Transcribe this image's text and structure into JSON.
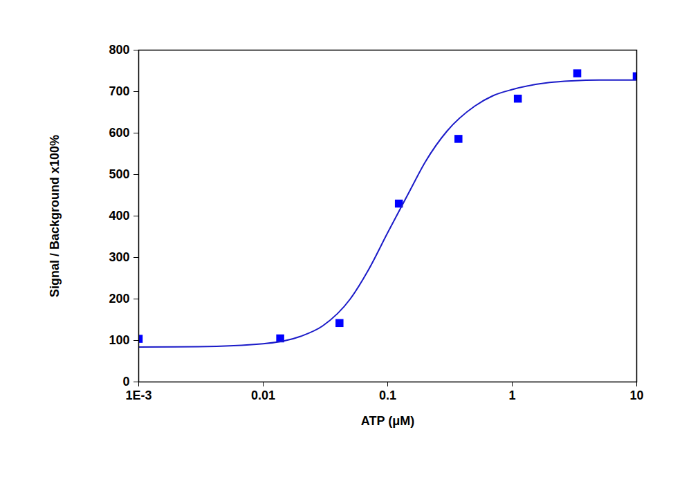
{
  "chart_data": {
    "type": "scatter",
    "x_label": "ATP (μM)",
    "y_label": "Signal / Background x100%",
    "log": "x",
    "xlim": [
      0.001,
      10
    ],
    "xticks": [
      {
        "value": 0.001,
        "label": "1E-3"
      },
      0.01,
      0.1,
      1,
      10
    ],
    "ylim": [
      0,
      800
    ],
    "yticks": [
      0,
      100,
      200,
      300,
      400,
      500,
      600,
      700,
      800
    ],
    "grid": false,
    "series": [
      {
        "type": "scatter",
        "marker": "square",
        "color": "#0000ff",
        "x": [
          0.001,
          0.0137,
          0.041,
          0.123,
          0.37,
          1.11,
          3.33,
          10
        ],
        "values": [
          104,
          105,
          142,
          430,
          586,
          683,
          744,
          737
        ]
      },
      {
        "type": "line",
        "line_style": "solid",
        "color": "#1a1ac8",
        "x": [
          0.001,
          0.003,
          0.01,
          0.02,
          0.03,
          0.05,
          0.07,
          0.1,
          0.15,
          0.2,
          0.3,
          0.5,
          0.7,
          1,
          2,
          3,
          5,
          10
        ],
        "values": [
          84,
          85,
          92,
          110,
          135,
          200,
          270,
          360,
          460,
          530,
          605,
          665,
          690,
          705,
          722,
          726,
          728,
          728
        ]
      }
    ]
  }
}
